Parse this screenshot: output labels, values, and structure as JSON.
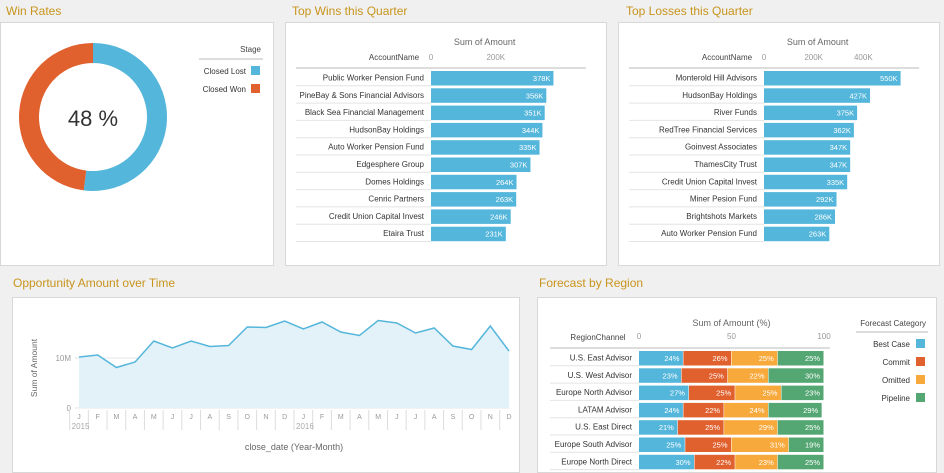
{
  "titles": {
    "win_rates": "Win Rates",
    "top_wins": "Top Wins this Quarter",
    "top_losses": "Top Losses this Quarter",
    "opp_amount": "Opportunity Amount over Time",
    "forecast": "Forecast by Region"
  },
  "colors": {
    "blue": "#55b6db",
    "orange": "#e0602e",
    "yellow": "#f7a93b",
    "green": "#54a772",
    "title": "#c8941c"
  },
  "chart_data": [
    {
      "id": "win_rates",
      "type": "pie",
      "center_label": "48 %",
      "legend_title": "Stage",
      "categories": [
        "Closed Lost",
        "Closed Won"
      ],
      "values": [
        52,
        48
      ],
      "colors": [
        "#55b6db",
        "#e0602e"
      ]
    },
    {
      "id": "top_wins",
      "type": "bar",
      "orientation": "horizontal",
      "ylabel": "AccountName",
      "xlabel": "Sum of Amount",
      "ticks": [
        0,
        200000
      ],
      "tick_labels": [
        "0",
        "200K"
      ],
      "xlim": [
        0,
        460000
      ],
      "categories": [
        "Public Worker Pension Fund",
        "PineBay & Sons Financial Advisors",
        "Black Sea Financial Management",
        "HudsonBay Holdings",
        "Auto Worker Pension Fund",
        "Edgesphere Group",
        "Domes Holdings",
        "Cenric Partners",
        "Credit Union Capital Invest",
        "Etaira Trust"
      ],
      "values": [
        378000,
        356000,
        351000,
        344000,
        335000,
        307000,
        264000,
        263000,
        246000,
        231000
      ],
      "labels": [
        "378K",
        "356K",
        "351K",
        "344K",
        "335K",
        "307K",
        "264K",
        "263K",
        "246K",
        "231K"
      ]
    },
    {
      "id": "top_losses",
      "type": "bar",
      "orientation": "horizontal",
      "ylabel": "AccountName",
      "xlabel": "Sum of Amount",
      "ticks": [
        0,
        200000,
        400000
      ],
      "tick_labels": [
        "0",
        "200K",
        "400K"
      ],
      "xlim": [
        0,
        600000
      ],
      "categories": [
        "Monterold Hill Advisors",
        "HudsonBay Holdings",
        "River Funds",
        "RedTree Financial Services",
        "Goinvest Associates",
        "ThamesCity Trust",
        "Credit Union Capital Invest",
        "Miner Pesion Fund",
        "Brightshots Markets",
        "Auto Worker Pension Fund"
      ],
      "values": [
        550000,
        427000,
        375000,
        362000,
        347000,
        347000,
        335000,
        292000,
        286000,
        263000
      ],
      "labels": [
        "550K",
        "427K",
        "375K",
        "362K",
        "347K",
        "347K",
        "335K",
        "292K",
        "286K",
        "263K"
      ]
    },
    {
      "id": "opp_amount",
      "type": "area",
      "xlabel": "close_date (Year-Month)",
      "ylabel": "Sum of Amount",
      "ylim": [
        0,
        20000000
      ],
      "yticks": [
        0,
        10000000
      ],
      "ytick_labels": [
        "0",
        "10M"
      ],
      "x": [
        "J",
        "F",
        "M",
        "A",
        "M",
        "J",
        "J",
        "A",
        "S",
        "O",
        "N",
        "D",
        "J",
        "F",
        "M",
        "A",
        "M",
        "J",
        "J",
        "A",
        "S",
        "O",
        "N",
        "D"
      ],
      "years": [
        "2015",
        "2016"
      ],
      "values": [
        10200000,
        10600000,
        8100000,
        9200000,
        13400000,
        12000000,
        13400000,
        12300000,
        12500000,
        16200000,
        16100000,
        17400000,
        15800000,
        17200000,
        15200000,
        14500000,
        17500000,
        17000000,
        15000000,
        16000000,
        12400000,
        11700000,
        16400000,
        11400000
      ]
    },
    {
      "id": "forecast",
      "type": "bar",
      "orientation": "horizontal",
      "stacked": true,
      "ylabel": "RegionChannel",
      "xlabel": "Sum of Amount (%)",
      "ticks": [
        0,
        50,
        100
      ],
      "tick_labels": [
        "0",
        "50",
        "100"
      ],
      "xlim": [
        0,
        100
      ],
      "legend_title": "Forecast Category",
      "categories": [
        "U.S. East Advisor",
        "U.S. West Advisor",
        "Europe North Advisor",
        "LATAM Advisor",
        "U.S. East Direct",
        "Europe South Advisor",
        "Europe North Direct"
      ],
      "series": [
        {
          "name": "Best Case",
          "color": "#55b6db",
          "values": [
            24,
            23,
            27,
            24,
            21,
            25,
            30
          ]
        },
        {
          "name": "Commit",
          "color": "#e0602e",
          "values": [
            26,
            25,
            25,
            22,
            25,
            25,
            22
          ]
        },
        {
          "name": "Omitted",
          "color": "#f7a93b",
          "values": [
            25,
            22,
            25,
            24,
            29,
            31,
            23
          ]
        },
        {
          "name": "Pipeline",
          "color": "#54a772",
          "values": [
            25,
            30,
            23,
            29,
            25,
            19,
            25
          ]
        }
      ]
    }
  ]
}
